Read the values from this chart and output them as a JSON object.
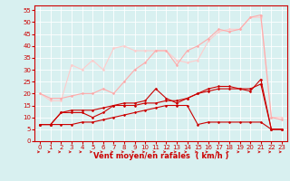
{
  "x": [
    0,
    1,
    2,
    3,
    4,
    5,
    6,
    7,
    8,
    9,
    10,
    11,
    12,
    13,
    14,
    15,
    16,
    17,
    18,
    19,
    20,
    21,
    22,
    23
  ],
  "series": {
    "line1": [
      7,
      7,
      7,
      7,
      8,
      8,
      9,
      10,
      11,
      12,
      13,
      14,
      15,
      15,
      15,
      7,
      8,
      8,
      8,
      8,
      8,
      8,
      5,
      5
    ],
    "line2": [
      7,
      7,
      12,
      12,
      12,
      10,
      12,
      15,
      15,
      15,
      16,
      16,
      17,
      17,
      18,
      20,
      21,
      22,
      22,
      22,
      21,
      26,
      5,
      5
    ],
    "line3": [
      7,
      7,
      12,
      13,
      13,
      13,
      14,
      15,
      16,
      16,
      17,
      22,
      18,
      16,
      18,
      20,
      22,
      23,
      23,
      22,
      22,
      24,
      5,
      5
    ],
    "line4": [
      20,
      18,
      18,
      19,
      20,
      20,
      22,
      20,
      25,
      30,
      33,
      38,
      38,
      32,
      38,
      40,
      43,
      47,
      46,
      47,
      52,
      53,
      10,
      9
    ],
    "line5": [
      20,
      17,
      17,
      32,
      30,
      34,
      30,
      39,
      40,
      38,
      38,
      38,
      38,
      34,
      33,
      34,
      42,
      46,
      47,
      47,
      52,
      52,
      10,
      10
    ]
  },
  "colors": {
    "line1": "#cc0000",
    "line2": "#cc0000",
    "line3": "#cc0000",
    "line4": "#ffaaaa",
    "line5": "#ffcccc"
  },
  "linewidths": {
    "line1": 0.8,
    "line2": 0.8,
    "line3": 0.8,
    "line4": 0.8,
    "line5": 0.8
  },
  "marker": "D",
  "markersize": 1.5,
  "xlabel": "Vent moyen/en rafales  ( km/h )",
  "xlim": [
    -0.5,
    23.5
  ],
  "ylim": [
    0,
    57
  ],
  "yticks": [
    0,
    5,
    10,
    15,
    20,
    25,
    30,
    35,
    40,
    45,
    50,
    55
  ],
  "xticks": [
    0,
    1,
    2,
    3,
    4,
    5,
    6,
    7,
    8,
    9,
    10,
    11,
    12,
    13,
    14,
    15,
    16,
    17,
    18,
    19,
    20,
    21,
    22,
    23
  ],
  "bg_color": "#d8f0f0",
  "grid_color": "#ffffff",
  "tick_color": "#cc0000",
  "spine_color": "#cc0000",
  "label_color": "#cc0000",
  "tick_fontsize": 5.0,
  "xlabel_fontsize": 6.0
}
